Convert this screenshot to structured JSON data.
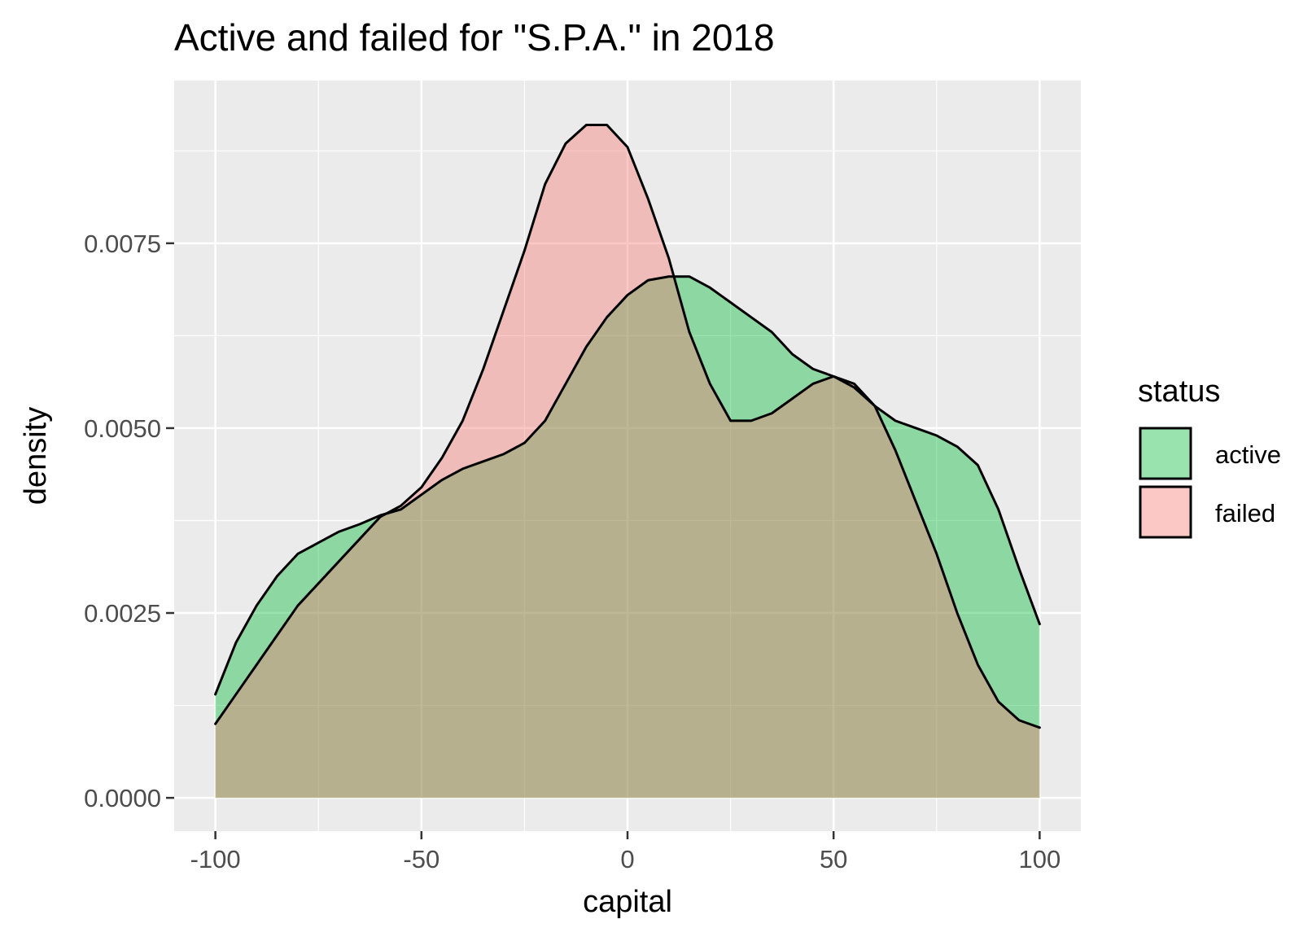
{
  "chart_data": {
    "type": "area",
    "title": "Active and failed for \"S.P.A.\" in 2018",
    "xlabel": "capital",
    "ylabel": "density",
    "xlim": [
      -110,
      110
    ],
    "ylim": [
      -0.00045,
      0.0097
    ],
    "x_ticks": [
      -100,
      -50,
      0,
      50,
      100
    ],
    "x_tick_labels": [
      "-100",
      "-50",
      "0",
      "50",
      "100"
    ],
    "y_ticks": [
      0,
      0.0025,
      0.005,
      0.0075
    ],
    "y_tick_labels": [
      "0.0000",
      "0.0025",
      "0.0050",
      "0.0075"
    ],
    "x_minor_ticks": [
      -75,
      -25,
      25,
      75
    ],
    "y_minor_ticks": [
      0.00125,
      0.00375,
      0.00625,
      0.00875
    ],
    "grid": true,
    "legend": {
      "title": "status",
      "position": "right"
    },
    "series": [
      {
        "name": "active",
        "color": "#00BA38",
        "fill_opacity": 0.4,
        "x": [
          -100,
          -95,
          -90,
          -85,
          -80,
          -75,
          -70,
          -65,
          -60,
          -55,
          -50,
          -45,
          -40,
          -35,
          -30,
          -25,
          -20,
          -15,
          -10,
          -5,
          0,
          5,
          10,
          15,
          20,
          25,
          30,
          35,
          40,
          45,
          50,
          55,
          60,
          65,
          70,
          75,
          80,
          85,
          90,
          95,
          100
        ],
        "values": [
          0.0014,
          0.0021,
          0.0026,
          0.003,
          0.0033,
          0.00345,
          0.0036,
          0.0037,
          0.00382,
          0.0039,
          0.0041,
          0.0043,
          0.00445,
          0.00455,
          0.00465,
          0.0048,
          0.0051,
          0.0056,
          0.0061,
          0.0065,
          0.0068,
          0.007,
          0.00705,
          0.00705,
          0.0069,
          0.0067,
          0.0065,
          0.0063,
          0.006,
          0.0058,
          0.0057,
          0.00555,
          0.0053,
          0.0051,
          0.005,
          0.0049,
          0.00475,
          0.0045,
          0.0039,
          0.0031,
          0.00235
        ]
      },
      {
        "name": "failed",
        "color": "#F8766D",
        "fill_opacity": 0.4,
        "x": [
          -100,
          -95,
          -90,
          -85,
          -80,
          -75,
          -70,
          -65,
          -60,
          -55,
          -50,
          -45,
          -40,
          -35,
          -30,
          -25,
          -20,
          -15,
          -10,
          -5,
          0,
          5,
          10,
          15,
          20,
          25,
          30,
          35,
          40,
          45,
          50,
          55,
          60,
          65,
          70,
          75,
          80,
          85,
          90,
          95,
          100
        ],
        "values": [
          0.001,
          0.0014,
          0.0018,
          0.0022,
          0.0026,
          0.0029,
          0.0032,
          0.0035,
          0.0038,
          0.00395,
          0.0042,
          0.0046,
          0.0051,
          0.0058,
          0.0066,
          0.0074,
          0.0083,
          0.00885,
          0.0091,
          0.0091,
          0.0088,
          0.0081,
          0.0073,
          0.0063,
          0.0056,
          0.0051,
          0.0051,
          0.0052,
          0.0054,
          0.0056,
          0.0057,
          0.0056,
          0.0053,
          0.0047,
          0.004,
          0.0033,
          0.0025,
          0.0018,
          0.0013,
          0.00105,
          0.00095
        ]
      }
    ]
  }
}
